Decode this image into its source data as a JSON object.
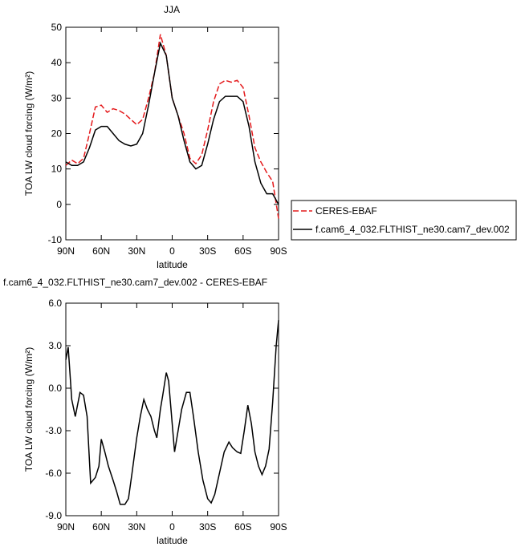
{
  "chart_data": [
    {
      "type": "line",
      "title": "JJA",
      "xlabel": "latitude",
      "ylabel": "TOA LW cloud forcing (W/m²)",
      "xlim": [
        90,
        -90
      ],
      "xticks": [
        {
          "value": 90,
          "label": "90N"
        },
        {
          "value": 60,
          "label": "60N"
        },
        {
          "value": 30,
          "label": "30N"
        },
        0,
        {
          "value": -30,
          "label": "30S"
        },
        {
          "value": -60,
          "label": "60S"
        },
        {
          "value": -90,
          "label": "90S"
        }
      ],
      "ylim": [
        -10,
        50
      ],
      "yticks": [
        -10,
        0,
        10,
        20,
        30,
        40,
        50
      ],
      "x": [
        90,
        85,
        80,
        75,
        70,
        65,
        60,
        55,
        50,
        45,
        40,
        35,
        30,
        25,
        20,
        15,
        10,
        5,
        0,
        -5,
        -10,
        -15,
        -20,
        -25,
        -30,
        -35,
        -40,
        -45,
        -50,
        -55,
        -60,
        -65,
        -70,
        -75,
        -80,
        -85,
        -90
      ],
      "legend": "right",
      "series": [
        {
          "name": "CERES-EBAF",
          "color": "#e41a1c",
          "linestyle": "dashed",
          "values": [
            11,
            12.5,
            11.5,
            13,
            20,
            27.5,
            28,
            26,
            27,
            26.5,
            25.5,
            24,
            22.5,
            24,
            30,
            37,
            48,
            42,
            30,
            25,
            20,
            13,
            11.5,
            14,
            21,
            29,
            34,
            35,
            34.5,
            35,
            33,
            25,
            16,
            12,
            9,
            6.5,
            -4
          ]
        },
        {
          "name": "f.cam6_4_032.FLTHIST_ne30.cam7_dev.002",
          "color": "#000000",
          "linestyle": "solid",
          "values": [
            12,
            11,
            11,
            12,
            16,
            21,
            22,
            22,
            20,
            18,
            17,
            16.5,
            17,
            20,
            28,
            37,
            45.5,
            42,
            30,
            25,
            18,
            12,
            10,
            11,
            17,
            24,
            29,
            30.5,
            30.5,
            30.5,
            29,
            22,
            12,
            6,
            3,
            3,
            0
          ]
        }
      ]
    },
    {
      "type": "line",
      "title": "f.cam6_4_032.FLTHIST_ne30.cam7_dev.002 - CERES-EBAF",
      "xlabel": "latitude",
      "ylabel": "TOA LW cloud forcing (W/m²)",
      "xlim": [
        90,
        -90
      ],
      "xticks": [
        {
          "value": 90,
          "label": "90N"
        },
        {
          "value": 60,
          "label": "60N"
        },
        {
          "value": 30,
          "label": "30N"
        },
        0,
        {
          "value": -30,
          "label": "30S"
        },
        {
          "value": -60,
          "label": "60S"
        },
        {
          "value": -90,
          "label": "90S"
        }
      ],
      "ylim": [
        -9,
        6
      ],
      "yticks": [
        {
          "value": -9,
          "label": "-9.0"
        },
        {
          "value": -6,
          "label": "-6.0"
        },
        {
          "value": -3,
          "label": "-3.0"
        },
        {
          "value": 0,
          "label": "0.0"
        },
        {
          "value": 3,
          "label": "3.0"
        },
        {
          "value": 6,
          "label": "6.0"
        }
      ],
      "x": [
        90,
        88,
        85,
        82,
        78,
        75,
        72,
        69,
        65,
        62,
        60,
        57,
        54,
        50,
        47,
        44,
        40,
        37,
        34,
        30,
        27,
        24,
        21,
        18,
        15,
        13,
        10,
        8,
        5,
        3,
        0,
        -2,
        -5,
        -8,
        -12,
        -15,
        -18,
        -22,
        -26,
        -30,
        -33,
        -36,
        -40,
        -44,
        -48,
        -51,
        -55,
        -58,
        -61,
        -64,
        -67,
        -70,
        -73,
        -76,
        -79,
        -82,
        -85,
        -88,
        -90
      ],
      "series": [
        {
          "color": "#000000",
          "linestyle": "solid",
          "values": [
            2,
            2.9,
            -0.8,
            -2,
            -0.3,
            -0.5,
            -2,
            -6.7,
            -6.3,
            -5.5,
            -3.6,
            -4.5,
            -5.5,
            -6.5,
            -7.3,
            -8.2,
            -8.2,
            -7.8,
            -6,
            -3.5,
            -2,
            -0.8,
            -1.5,
            -2,
            -3,
            -3.5,
            -1.5,
            -0.5,
            1.1,
            0.5,
            -2.5,
            -4.5,
            -3,
            -1.5,
            -0.3,
            -0.3,
            -2,
            -4.5,
            -6.5,
            -7.8,
            -8.1,
            -7.5,
            -6,
            -4.5,
            -3.8,
            -4.2,
            -4.5,
            -4.6,
            -3,
            -1.2,
            -2.5,
            -4.5,
            -5.5,
            -6.1,
            -5.5,
            -4.3,
            -1,
            3,
            4.8
          ]
        }
      ]
    }
  ]
}
